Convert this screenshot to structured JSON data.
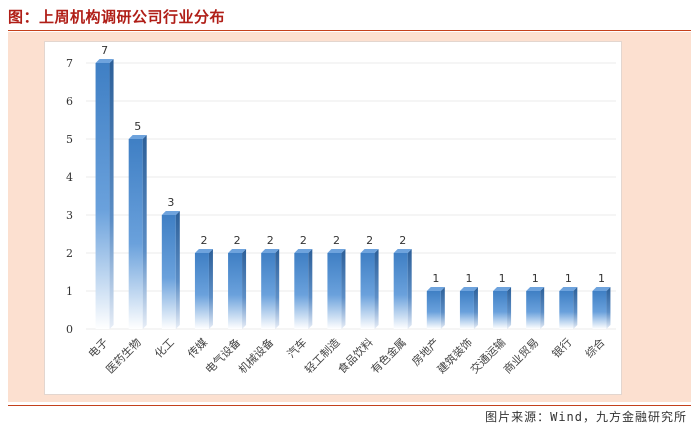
{
  "header": {
    "title": "图：上周机构调研公司行业分布"
  },
  "footer": {
    "source": "图片来源：Wind，九方金融研究所"
  },
  "chart_data": {
    "type": "bar",
    "title": "",
    "xlabel": "",
    "ylabel": "",
    "categories": [
      "电子",
      "医药生物",
      "化工",
      "传媒",
      "电气设备",
      "机械设备",
      "汽车",
      "轻工制造",
      "食品饮料",
      "有色金属",
      "房地产",
      "建筑装饰",
      "交通运输",
      "商业贸易",
      "银行",
      "综合"
    ],
    "values": [
      7,
      5,
      3,
      2,
      2,
      2,
      2,
      2,
      2,
      2,
      1,
      1,
      1,
      1,
      1,
      1
    ],
    "ylim": [
      0,
      7
    ],
    "yticks": [
      0,
      1,
      2,
      3,
      4,
      5,
      6,
      7
    ],
    "grid": true,
    "legend": "none",
    "colors": {
      "bar_top": "#4a86c8",
      "bar_side": "#2c5f98",
      "bar_cap": "#6ea3dd"
    }
  }
}
